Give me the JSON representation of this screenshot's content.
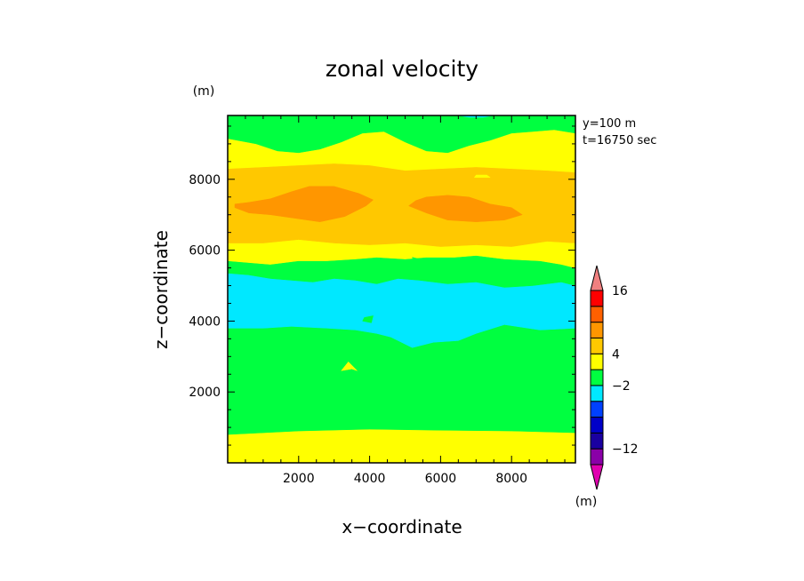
{
  "chart_data": {
    "type": "heatmap",
    "title": "zonal velocity",
    "xlabel": "x−coordinate",
    "ylabel": "z−coordinate",
    "x_unit": "(m)",
    "y_unit": "(m)",
    "xlim": [
      0,
      9800
    ],
    "ylim": [
      0,
      9800
    ],
    "xticks": [
      2000,
      4000,
      6000,
      8000
    ],
    "xtick_labels": [
      "2000",
      "4000",
      "6000",
      "8000"
    ],
    "yticks": [
      2000,
      4000,
      6000,
      8000
    ],
    "ytick_labels": [
      "2000",
      "4000",
      "6000",
      "8000"
    ],
    "annotations": [
      "y=100  m",
      "t=16750 sec"
    ],
    "colorbar": {
      "unit": "(m)",
      "levels": [
        {
          "color": "#e000b0"
        },
        {
          "color": "#8a00a8"
        },
        {
          "color": "#1a00a0"
        },
        {
          "color": "#0000c8"
        },
        {
          "color": "#0040ff"
        },
        {
          "color": "#00e8ff"
        },
        {
          "color": "#00ff40"
        },
        {
          "color": "#ffff00"
        },
        {
          "color": "#ffc800"
        },
        {
          "color": "#ff9600"
        },
        {
          "color": "#ff6000"
        },
        {
          "color": "#ff0000"
        },
        {
          "color": "#f08080"
        }
      ],
      "labels": [
        {
          "text": "−12",
          "boundary": 2
        },
        {
          "text": "−2",
          "boundary": 6
        },
        {
          "text": "4",
          "boundary": 8
        },
        {
          "text": "16",
          "boundary": 12
        }
      ]
    },
    "regions": [
      {
        "name": "bottom-yellow-band",
        "level": 7,
        "points": [
          [
            0,
            0
          ],
          [
            9800,
            0
          ],
          [
            9800,
            850
          ],
          [
            8000,
            900
          ],
          [
            6000,
            920
          ],
          [
            4000,
            950
          ],
          [
            2000,
            900
          ],
          [
            0,
            800
          ]
        ]
      },
      {
        "name": "lower-green-zone",
        "level": 6,
        "points": [
          [
            0,
            800
          ],
          [
            2000,
            900
          ],
          [
            4000,
            950
          ],
          [
            6000,
            920
          ],
          [
            8000,
            900
          ],
          [
            9800,
            850
          ],
          [
            9800,
            3800
          ],
          [
            8800,
            3750
          ],
          [
            7800,
            3900
          ],
          [
            7000,
            3650
          ],
          [
            6500,
            3450
          ],
          [
            5800,
            3400
          ],
          [
            5200,
            3250
          ],
          [
            4600,
            3550
          ],
          [
            4200,
            3650
          ],
          [
            3600,
            3750
          ],
          [
            2800,
            3800
          ],
          [
            1800,
            3850
          ],
          [
            1000,
            3800
          ],
          [
            0,
            3800
          ]
        ]
      },
      {
        "name": "cyan-band",
        "level": 5,
        "points": [
          [
            0,
            3800
          ],
          [
            1000,
            3800
          ],
          [
            1800,
            3850
          ],
          [
            2800,
            3800
          ],
          [
            3600,
            3750
          ],
          [
            4200,
            3650
          ],
          [
            4600,
            3550
          ],
          [
            5200,
            3250
          ],
          [
            5800,
            3400
          ],
          [
            6500,
            3450
          ],
          [
            7000,
            3650
          ],
          [
            7800,
            3900
          ],
          [
            8800,
            3750
          ],
          [
            9800,
            3800
          ],
          [
            9800,
            5000
          ],
          [
            9400,
            5100
          ],
          [
            8600,
            5000
          ],
          [
            7800,
            4950
          ],
          [
            7000,
            5100
          ],
          [
            6200,
            5050
          ],
          [
            5400,
            5150
          ],
          [
            4800,
            5200
          ],
          [
            4200,
            5050
          ],
          [
            3600,
            5150
          ],
          [
            3000,
            5200
          ],
          [
            2400,
            5100
          ],
          [
            1800,
            5150
          ],
          [
            1200,
            5200
          ],
          [
            600,
            5300
          ],
          [
            0,
            5350
          ]
        ]
      },
      {
        "name": "green-patch",
        "level": 6,
        "points": [
          [
            3800,
            4000
          ],
          [
            4050,
            3950
          ],
          [
            4100,
            4150
          ],
          [
            3850,
            4100
          ]
        ]
      },
      {
        "name": "upper-green-band",
        "level": 6,
        "points": [
          [
            0,
            5350
          ],
          [
            600,
            5300
          ],
          [
            1200,
            5200
          ],
          [
            1800,
            5150
          ],
          [
            2400,
            5100
          ],
          [
            3000,
            5200
          ],
          [
            3600,
            5150
          ],
          [
            4200,
            5050
          ],
          [
            4800,
            5200
          ],
          [
            5400,
            5150
          ],
          [
            6200,
            5050
          ],
          [
            7000,
            5100
          ],
          [
            7800,
            4950
          ],
          [
            8600,
            5000
          ],
          [
            9400,
            5100
          ],
          [
            9800,
            5000
          ],
          [
            9800,
            5500
          ],
          [
            9400,
            5600
          ],
          [
            8800,
            5700
          ],
          [
            7800,
            5750
          ],
          [
            7000,
            5850
          ],
          [
            6400,
            5800
          ],
          [
            5600,
            5800
          ],
          [
            5000,
            5750
          ],
          [
            4200,
            5800
          ],
          [
            3600,
            5750
          ],
          [
            2800,
            5700
          ],
          [
            2000,
            5700
          ],
          [
            1200,
            5600
          ],
          [
            0,
            5700
          ]
        ]
      },
      {
        "name": "middle-yellow-band",
        "level": 7,
        "points": [
          [
            0,
            5700
          ],
          [
            1200,
            5600
          ],
          [
            2000,
            5700
          ],
          [
            2800,
            5700
          ],
          [
            3600,
            5750
          ],
          [
            4200,
            5800
          ],
          [
            5000,
            5750
          ],
          [
            5600,
            5800
          ],
          [
            6400,
            5800
          ],
          [
            7000,
            5850
          ],
          [
            7800,
            5750
          ],
          [
            8800,
            5700
          ],
          [
            9400,
            5600
          ],
          [
            9800,
            5500
          ],
          [
            9800,
            6200
          ],
          [
            9000,
            6250
          ],
          [
            8000,
            6100
          ],
          [
            7000,
            6150
          ],
          [
            6000,
            6100
          ],
          [
            5000,
            6200
          ],
          [
            4000,
            6150
          ],
          [
            3000,
            6200
          ],
          [
            2000,
            6300
          ],
          [
            1000,
            6200
          ],
          [
            0,
            6200
          ]
        ]
      },
      {
        "name": "orange-band",
        "level": 8,
        "points": [
          [
            0,
            6200
          ],
          [
            1000,
            6200
          ],
          [
            2000,
            6300
          ],
          [
            3000,
            6200
          ],
          [
            4000,
            6150
          ],
          [
            5000,
            6200
          ],
          [
            6000,
            6100
          ],
          [
            7000,
            6150
          ],
          [
            8000,
            6100
          ],
          [
            9000,
            6250
          ],
          [
            9800,
            6200
          ],
          [
            9800,
            8200
          ],
          [
            9000,
            8250
          ],
          [
            8000,
            8300
          ],
          [
            7000,
            8350
          ],
          [
            6000,
            8300
          ],
          [
            5000,
            8250
          ],
          [
            4000,
            8400
          ],
          [
            3000,
            8450
          ],
          [
            2000,
            8400
          ],
          [
            1000,
            8350
          ],
          [
            0,
            8300
          ]
        ]
      },
      {
        "name": "dark-orange-core-left",
        "level": 9,
        "points": [
          [
            200,
            7200
          ],
          [
            600,
            7050
          ],
          [
            1200,
            7000
          ],
          [
            1900,
            6900
          ],
          [
            2600,
            6800
          ],
          [
            3300,
            6950
          ],
          [
            3900,
            7250
          ],
          [
            4100,
            7420
          ],
          [
            3700,
            7600
          ],
          [
            3000,
            7800
          ],
          [
            2300,
            7800
          ],
          [
            1800,
            7650
          ],
          [
            1200,
            7450
          ],
          [
            600,
            7350
          ],
          [
            200,
            7300
          ]
        ]
      },
      {
        "name": "dark-orange-core-right",
        "level": 9,
        "points": [
          [
            5100,
            7250
          ],
          [
            5600,
            7050
          ],
          [
            6200,
            6850
          ],
          [
            7000,
            6800
          ],
          [
            7800,
            6850
          ],
          [
            8300,
            7000
          ],
          [
            8000,
            7200
          ],
          [
            7400,
            7300
          ],
          [
            6800,
            7500
          ],
          [
            6200,
            7550
          ],
          [
            5600,
            7500
          ],
          [
            5300,
            7400
          ]
        ]
      },
      {
        "name": "top-yellow-band",
        "level": 7,
        "points": [
          [
            0,
            8300
          ],
          [
            1000,
            8350
          ],
          [
            2000,
            8400
          ],
          [
            3000,
            8450
          ],
          [
            4000,
            8400
          ],
          [
            5000,
            8250
          ],
          [
            6000,
            8300
          ],
          [
            7000,
            8350
          ],
          [
            8000,
            8300
          ],
          [
            9000,
            8250
          ],
          [
            9800,
            8200
          ],
          [
            9800,
            9300
          ],
          [
            9200,
            9400
          ],
          [
            8600,
            9350
          ],
          [
            8000,
            9300
          ],
          [
            7400,
            9100
          ],
          [
            6800,
            8950
          ],
          [
            6200,
            8750
          ],
          [
            5600,
            8800
          ],
          [
            5000,
            9050
          ],
          [
            4400,
            9350
          ],
          [
            3800,
            9300
          ],
          [
            3200,
            9050
          ],
          [
            2600,
            8850
          ],
          [
            2000,
            8750
          ],
          [
            1400,
            8800
          ],
          [
            800,
            9000
          ],
          [
            0,
            9150
          ]
        ]
      },
      {
        "name": "top-green-band",
        "level": 6,
        "points": [
          [
            0,
            9150
          ],
          [
            800,
            9000
          ],
          [
            1400,
            8800
          ],
          [
            2000,
            8750
          ],
          [
            2600,
            8850
          ],
          [
            3200,
            9050
          ],
          [
            3800,
            9300
          ],
          [
            4400,
            9350
          ],
          [
            5000,
            9050
          ],
          [
            5600,
            8800
          ],
          [
            6200,
            8750
          ],
          [
            6800,
            8950
          ],
          [
            7400,
            9100
          ],
          [
            8000,
            9300
          ],
          [
            8600,
            9350
          ],
          [
            9200,
            9400
          ],
          [
            9800,
            9300
          ],
          [
            9800,
            9800
          ],
          [
            0,
            9800
          ]
        ]
      },
      {
        "name": "top-cyan-sliver",
        "level": 5,
        "points": [
          [
            6500,
            9800
          ],
          [
            6800,
            9750
          ],
          [
            7200,
            9750
          ],
          [
            7500,
            9800
          ]
        ]
      },
      {
        "name": "small-yellow-patch",
        "level": 7,
        "points": [
          [
            3200,
            2600
          ],
          [
            3500,
            2650
          ],
          [
            3650,
            2600
          ],
          [
            3400,
            2850
          ]
        ]
      },
      {
        "name": "small-green-tongue",
        "level": 6,
        "points": [
          [
            5200,
            5800
          ],
          [
            5300,
            5550
          ],
          [
            5400,
            5750
          ]
        ]
      },
      {
        "name": "small-yellow-dot",
        "level": 7,
        "points": [
          [
            6950,
            8050
          ],
          [
            7400,
            8050
          ],
          [
            7300,
            8120
          ],
          [
            7000,
            8120
          ]
        ]
      }
    ]
  }
}
